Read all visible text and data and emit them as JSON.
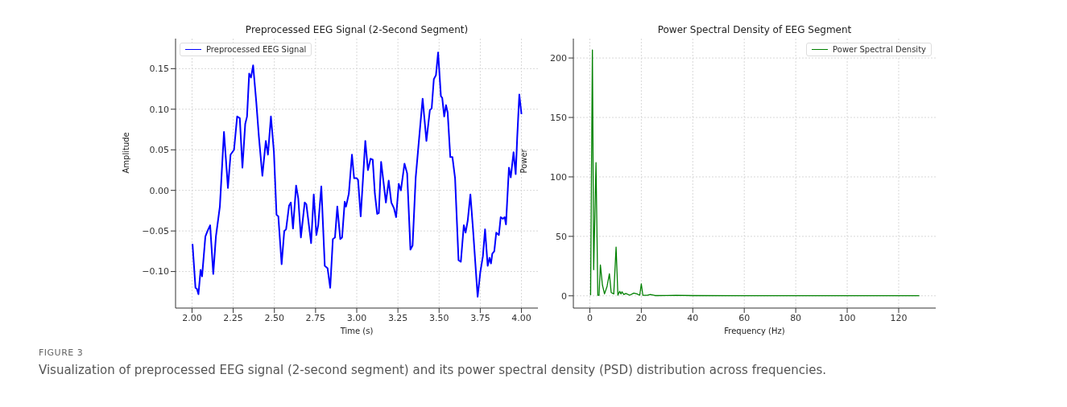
{
  "chart_data": [
    {
      "type": "line",
      "title": "Preprocessed EEG Signal (2-Second Segment)",
      "xlabel": "Time (s)",
      "ylabel": "Amplitude",
      "grid": true,
      "legend": "top left",
      "marker": "none",
      "xlim": [
        1.9,
        4.1
      ],
      "ylim": [
        -0.145,
        0.187
      ],
      "xticks": [
        {
          "value": 2,
          "label": "2.00"
        },
        {
          "value": 2.25,
          "label": "2.25"
        },
        {
          "value": 2.5,
          "label": "2.50"
        },
        {
          "value": 2.75,
          "label": "2.75"
        },
        {
          "value": 3,
          "label": "3.00"
        },
        {
          "value": 3.25,
          "label": "3.25"
        },
        {
          "value": 3.5,
          "label": "3.50"
        },
        {
          "value": 3.75,
          "label": "3.75"
        },
        {
          "value": 4,
          "label": "4.00"
        }
      ],
      "yticks": [
        {
          "value": -0.1,
          "label": "−0.10"
        },
        {
          "value": -0.05,
          "label": "−0.05"
        },
        {
          "value": 0,
          "label": "0.00"
        },
        {
          "value": 0.05,
          "label": "0.05"
        },
        {
          "value": 0.1,
          "label": "0.10"
        },
        {
          "value": 0.15,
          "label": "0.15"
        }
      ],
      "x": [
        2.003,
        2.021,
        2.029,
        2.039,
        2.052,
        2.061,
        2.081,
        2.094,
        2.11,
        2.129,
        2.145,
        2.169,
        2.194,
        2.218,
        2.234,
        2.255,
        2.274,
        2.29,
        2.306,
        2.323,
        2.334,
        2.347,
        2.358,
        2.371,
        2.39,
        2.406,
        2.427,
        2.448,
        2.461,
        2.479,
        2.497,
        2.513,
        2.524,
        2.544,
        2.56,
        2.571,
        2.589,
        2.6,
        2.613,
        2.632,
        2.645,
        2.661,
        2.684,
        2.694,
        2.723,
        2.739,
        2.755,
        2.766,
        2.785,
        2.806,
        2.823,
        2.839,
        2.855,
        2.868,
        2.882,
        2.9,
        2.911,
        2.927,
        2.935,
        2.952,
        2.971,
        2.984,
        3.0,
        3.008,
        3.024,
        3.052,
        3.068,
        3.084,
        3.097,
        3.11,
        3.124,
        3.134,
        3.148,
        3.161,
        3.177,
        3.194,
        3.21,
        3.226,
        3.239,
        3.255,
        3.268,
        3.29,
        3.306,
        3.326,
        3.339,
        3.358,
        3.374,
        3.4,
        3.423,
        3.444,
        3.455,
        3.468,
        3.481,
        3.494,
        3.511,
        3.519,
        3.531,
        3.542,
        3.552,
        3.568,
        3.581,
        3.597,
        3.618,
        3.632,
        3.65,
        3.661,
        3.674,
        3.69,
        3.706,
        3.734,
        3.75,
        3.766,
        3.779,
        3.795,
        3.806,
        3.815,
        3.823,
        3.835,
        3.847,
        3.863,
        3.874,
        3.887,
        3.898,
        3.906,
        3.924,
        3.935,
        3.952,
        3.965,
        3.974,
        3.987,
        4.0
      ],
      "series": [
        {
          "name": "Preprocessed EEG Signal",
          "color": "#0000ff",
          "values": [
            -0.066,
            -0.12,
            -0.121,
            -0.128,
            -0.098,
            -0.106,
            -0.057,
            -0.05,
            -0.043,
            -0.103,
            -0.057,
            -0.02,
            0.072,
            0.003,
            0.044,
            0.05,
            0.091,
            0.089,
            0.028,
            0.082,
            0.091,
            0.144,
            0.139,
            0.154,
            0.109,
            0.066,
            0.018,
            0.061,
            0.044,
            0.091,
            0.048,
            -0.03,
            -0.032,
            -0.091,
            -0.05,
            -0.048,
            -0.019,
            -0.015,
            -0.047,
            0.006,
            -0.01,
            -0.058,
            -0.015,
            -0.017,
            -0.065,
            -0.005,
            -0.055,
            -0.043,
            0.005,
            -0.093,
            -0.096,
            -0.12,
            -0.06,
            -0.058,
            -0.02,
            -0.06,
            -0.058,
            -0.014,
            -0.02,
            -0.004,
            0.044,
            0.015,
            0.015,
            0.013,
            -0.032,
            0.061,
            0.025,
            0.039,
            0.038,
            -0.004,
            -0.029,
            -0.028,
            0.035,
            0.013,
            -0.015,
            0.012,
            -0.015,
            -0.022,
            -0.033,
            0.008,
            0.0,
            0.033,
            0.021,
            -0.073,
            -0.068,
            0.016,
            0.053,
            0.113,
            0.061,
            0.099,
            0.101,
            0.137,
            0.142,
            0.17,
            0.116,
            0.114,
            0.091,
            0.105,
            0.096,
            0.041,
            0.041,
            0.015,
            -0.086,
            -0.088,
            -0.043,
            -0.052,
            -0.037,
            -0.005,
            -0.048,
            -0.131,
            -0.101,
            -0.081,
            -0.048,
            -0.093,
            -0.083,
            -0.09,
            -0.078,
            -0.075,
            -0.052,
            -0.055,
            -0.033,
            -0.035,
            -0.033,
            -0.042,
            0.028,
            0.016,
            0.047,
            0.02,
            0.064,
            0.118,
            0.094
          ]
        }
      ],
      "annotations": [
        "FIGURE 3",
        "Visualization of preprocessed EEG signal (2-second segment) and its power spectral density (PSD) distribution across frequencies."
      ]
    },
    {
      "type": "line",
      "title": "Power Spectral Density of EEG Segment",
      "xlabel": "Frequency (Hz)",
      "ylabel": "Power",
      "grid": true,
      "legend": "top right",
      "marker": "none",
      "xlim": [
        -6.4,
        134.4
      ],
      "ylim": [
        -10.3,
        216.3
      ],
      "xticks": [
        0,
        20,
        40,
        60,
        80,
        100,
        120
      ],
      "yticks": [
        0,
        50,
        100,
        150,
        200
      ],
      "x": [
        0.3,
        1.0,
        1.5,
        2.4,
        3.1,
        3.6,
        4.1,
        4.9,
        5.7,
        6.7,
        7.6,
        8.3,
        9.3,
        10.2,
        10.9,
        11.6,
        12.1,
        12.5,
        13.2,
        14.0,
        15.5,
        17.1,
        18.3,
        19.4,
        20.0,
        20.6,
        22.3,
        23.5,
        25.4,
        30,
        33.5,
        40,
        60,
        80,
        100,
        128
      ],
      "series": [
        {
          "name": "Power Spectral Density",
          "color": "#008000",
          "values": [
            0.5,
            206.8,
            22,
            112,
            0.5,
            0.5,
            26,
            9,
            1.6,
            8,
            18.5,
            2.7,
            1.6,
            41,
            0.5,
            3.8,
            1.6,
            3.4,
            1.1,
            2,
            0.5,
            2.3,
            1.6,
            0.5,
            10,
            0.5,
            0.5,
            1.1,
            0.2,
            0.3,
            0.5,
            0.2,
            0.1,
            0.1,
            0.1,
            0.1
          ]
        }
      ]
    }
  ]
}
